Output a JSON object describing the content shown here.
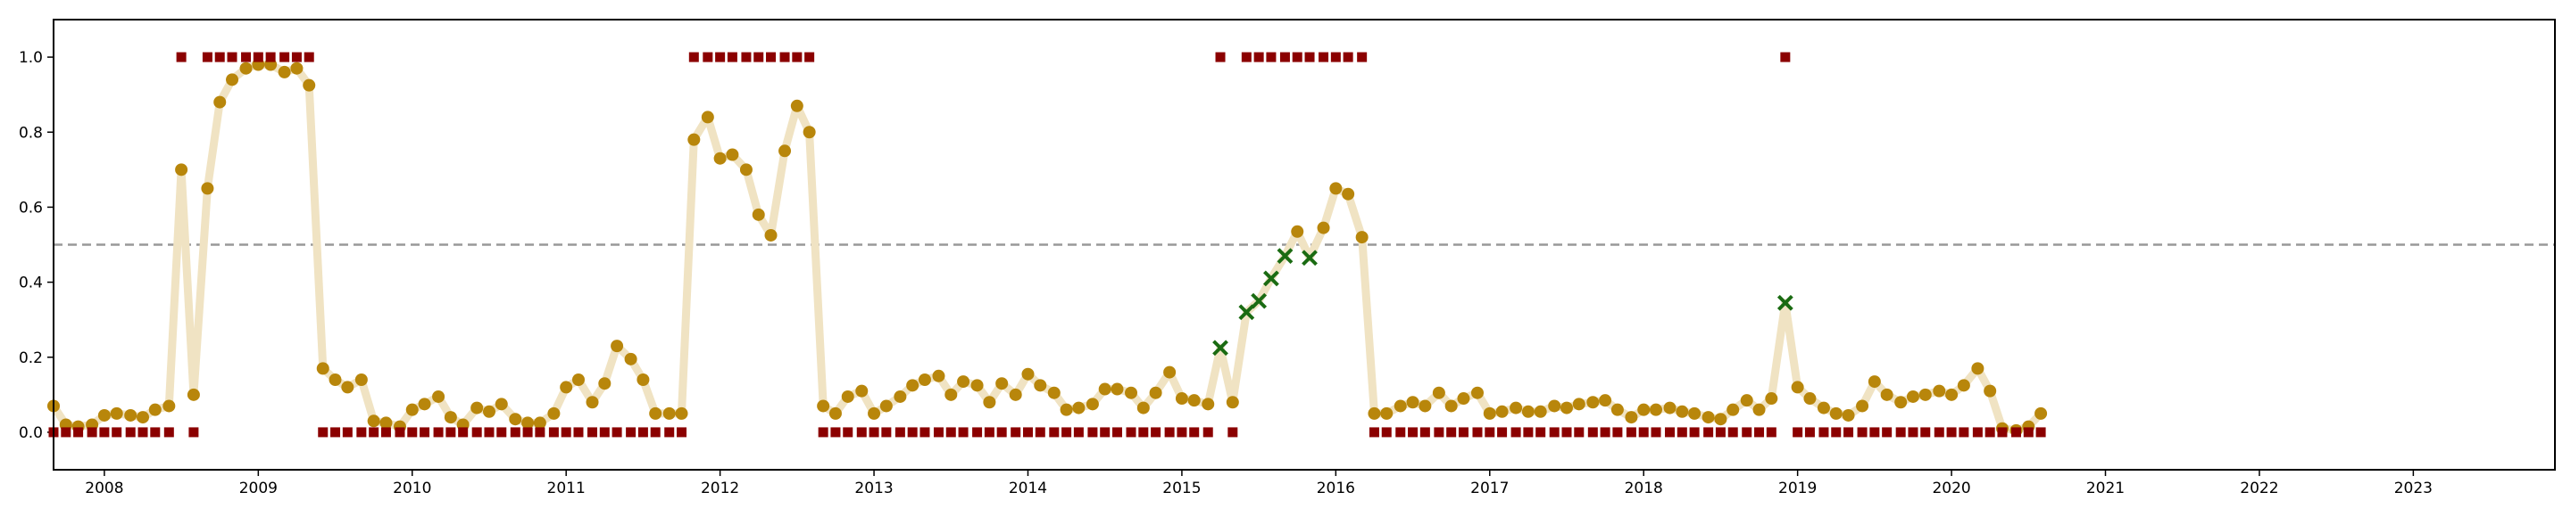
{
  "chart_data": {
    "type": "scatter",
    "title": "",
    "xlabel": "",
    "ylabel": "",
    "xlim": [
      2007.67,
      2023.92
    ],
    "ylim": [
      -0.1,
      1.1
    ],
    "grid": false,
    "legend": false,
    "x_ticks": [
      "2008",
      "2009",
      "2010",
      "2011",
      "2012",
      "2013",
      "2014",
      "2015",
      "2016",
      "2017",
      "2018",
      "2019",
      "2020",
      "2021",
      "2022",
      "2023"
    ],
    "y_ticks": [
      "0.0",
      "0.2",
      "0.4",
      "0.6",
      "0.8",
      "1.0"
    ],
    "threshold": 0.5,
    "colors": {
      "line": "#f0e3c3",
      "point": "#b8860b",
      "anomaly": "#1a6b12",
      "label": "#8b0000",
      "threshold": "#999999"
    },
    "series": [
      {
        "x": [
          2007.67,
          2007.75,
          2007.83,
          2007.92,
          2008.0,
          2008.08,
          2008.17,
          2008.25,
          2008.33,
          2008.42,
          2008.5,
          2008.58,
          2008.67,
          2008.75,
          2008.83,
          2008.92,
          2009.0,
          2009.08,
          2009.17,
          2009.25,
          2009.33,
          2009.42,
          2009.5,
          2009.58,
          2009.67,
          2009.75,
          2009.83,
          2009.92,
          2010.0,
          2010.08,
          2010.17,
          2010.25,
          2010.33,
          2010.42,
          2010.5,
          2010.58,
          2010.67,
          2010.75,
          2010.83,
          2010.92,
          2011.0,
          2011.08,
          2011.17,
          2011.25,
          2011.33,
          2011.42,
          2011.5,
          2011.58,
          2011.67,
          2011.75,
          2011.83,
          2011.92,
          2012.0,
          2012.08,
          2012.17,
          2012.25,
          2012.33,
          2012.42,
          2012.5,
          2012.58,
          2012.67,
          2012.75,
          2012.83,
          2012.92,
          2013.0,
          2013.08,
          2013.17,
          2013.25,
          2013.33,
          2013.42,
          2013.5,
          2013.58,
          2013.67,
          2013.75,
          2013.83,
          2013.92,
          2014.0,
          2014.08,
          2014.17,
          2014.25,
          2014.33,
          2014.42,
          2014.5,
          2014.58,
          2014.67,
          2014.75,
          2014.83,
          2014.92,
          2015.0,
          2015.08,
          2015.17,
          2015.25,
          2015.33,
          2015.42,
          2015.5,
          2015.58,
          2015.67,
          2015.75,
          2015.83,
          2015.92,
          2016.0,
          2016.08,
          2016.17,
          2016.25,
          2016.33,
          2016.42,
          2016.5,
          2016.58,
          2016.67,
          2016.75,
          2016.83,
          2016.92,
          2017.0,
          2017.08,
          2017.17,
          2017.25,
          2017.33,
          2017.42,
          2017.5,
          2017.58,
          2017.67,
          2017.75,
          2017.83,
          2017.92,
          2018.0,
          2018.08,
          2018.17,
          2018.25,
          2018.33,
          2018.42,
          2018.5,
          2018.58,
          2018.67,
          2018.75,
          2018.83,
          2018.92,
          2019.0,
          2019.08,
          2019.17,
          2019.25,
          2019.33,
          2019.42,
          2019.5,
          2019.58,
          2019.67,
          2019.75,
          2019.83,
          2019.92,
          2020.0,
          2020.08,
          2020.17,
          2020.25,
          2020.33,
          2020.42,
          2020.5,
          2020.58
        ],
        "y": [
          0.07,
          0.02,
          0.015,
          0.02,
          0.045,
          0.05,
          0.045,
          0.04,
          0.06,
          0.07,
          0.7,
          0.1,
          0.65,
          0.88,
          0.94,
          0.97,
          0.98,
          0.98,
          0.96,
          0.97,
          0.925,
          0.17,
          0.14,
          0.12,
          0.14,
          0.03,
          0.025,
          0.015,
          0.06,
          0.075,
          0.095,
          0.04,
          0.02,
          0.065,
          0.055,
          0.075,
          0.035,
          0.025,
          0.025,
          0.05,
          0.12,
          0.14,
          0.08,
          0.13,
          0.23,
          0.195,
          0.14,
          0.05,
          0.05,
          0.05,
          0.78,
          0.84,
          0.73,
          0.74,
          0.7,
          0.58,
          0.525,
          0.75,
          0.87,
          0.8,
          0.07,
          0.05,
          0.095,
          0.11,
          0.05,
          0.07,
          0.095,
          0.125,
          0.14,
          0.15,
          0.1,
          0.135,
          0.125,
          0.08,
          0.13,
          0.1,
          0.155,
          0.125,
          0.105,
          0.06,
          0.065,
          0.075,
          0.115,
          0.115,
          0.105,
          0.065,
          0.105,
          0.16,
          0.09,
          0.085,
          0.075,
          0.225,
          0.08,
          0.32,
          0.35,
          0.41,
          0.47,
          0.535,
          0.465,
          0.545,
          0.65,
          0.635,
          0.52,
          0.05,
          0.05,
          0.07,
          0.08,
          0.07,
          0.105,
          0.07,
          0.09,
          0.105,
          0.05,
          0.055,
          0.065,
          0.055,
          0.055,
          0.07,
          0.065,
          0.075,
          0.08,
          0.085,
          0.06,
          0.04,
          0.06,
          0.06,
          0.065,
          0.055,
          0.05,
          0.04,
          0.035,
          0.06,
          0.085,
          0.06,
          0.09,
          0.345,
          0.12,
          0.09,
          0.065,
          0.05,
          0.045,
          0.07,
          0.135,
          0.1,
          0.08,
          0.095,
          0.1,
          0.11,
          0.1,
          0.125,
          0.17,
          0.11,
          0.01,
          0.005,
          0.015,
          0.05
        ],
        "anomaly_x": [
          2015.25,
          2015.42,
          2015.5,
          2015.58,
          2015.67,
          2015.83,
          2018.92
        ]
      }
    ],
    "labels": {
      "x": [
        2008.5,
        2008.58,
        2008.67,
        2008.75,
        2008.83,
        2008.92,
        2009.0,
        2009.08,
        2009.17,
        2009.25,
        2009.33,
        2011.83,
        2011.92,
        2012.0,
        2012.08,
        2012.17,
        2012.25,
        2012.33,
        2012.42,
        2012.5,
        2012.58,
        2015.25,
        2015.42,
        2015.5,
        2015.58,
        2015.67,
        2015.75,
        2015.83,
        2015.92,
        2016.0,
        2016.08,
        2016.17,
        2018.92
      ],
      "y": [
        1,
        0,
        1,
        1,
        1,
        1,
        1,
        1,
        1,
        1,
        1,
        1,
        1,
        1,
        1,
        1,
        1,
        1,
        1,
        1,
        1,
        1,
        1,
        1,
        1,
        1,
        1,
        1,
        1,
        1,
        1,
        1,
        1
      ]
    }
  }
}
